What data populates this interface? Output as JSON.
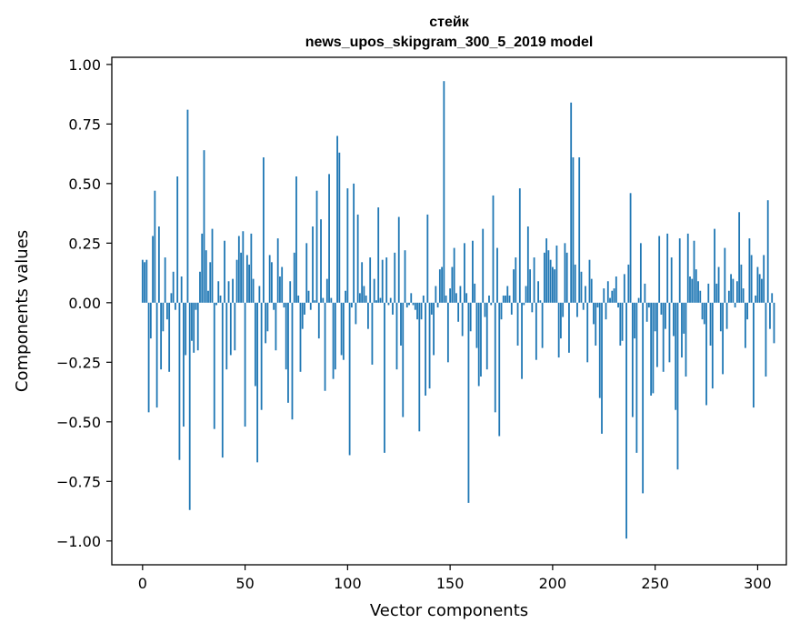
{
  "chart_data": {
    "type": "bar",
    "title": "стейк",
    "subtitle": "news_upos_skipgram_300_5_2019 model",
    "xlabel": "Vector components",
    "ylabel": "Components values",
    "xlim": [
      -15,
      314
    ],
    "ylim": [
      -1.1,
      1.03
    ],
    "xticks": [
      0,
      50,
      100,
      150,
      200,
      250,
      300
    ],
    "yticks": [
      1.0,
      0.75,
      0.5,
      0.25,
      0.0,
      -0.25,
      -0.5,
      -0.75,
      -1.0
    ],
    "xtick_labels": [
      "0",
      "50",
      "100",
      "150",
      "200",
      "250",
      "300"
    ],
    "ytick_labels": [
      "1.00",
      "0.75",
      "0.50",
      "0.25",
      "0.00",
      "−0.25",
      "−0.50",
      "−0.75",
      "−1.00"
    ],
    "bar_color": "#1f77b4",
    "values": [
      0.18,
      0.17,
      0.18,
      -0.46,
      -0.15,
      0.28,
      0.47,
      -0.44,
      0.32,
      -0.28,
      -0.12,
      0.19,
      -0.07,
      -0.29,
      0.04,
      0.13,
      -0.03,
      0.53,
      -0.66,
      0.11,
      -0.52,
      -0.22,
      0.81,
      -0.87,
      -0.16,
      -0.21,
      -0.03,
      -0.2,
      0.13,
      0.29,
      0.64,
      0.22,
      0.05,
      0.17,
      0.31,
      -0.53,
      -0.01,
      0.09,
      0.03,
      -0.65,
      0.26,
      -0.28,
      0.09,
      -0.22,
      0.1,
      -0.2,
      0.18,
      0.28,
      0.21,
      0.3,
      -0.52,
      0.2,
      0.16,
      0.29,
      0.1,
      -0.35,
      -0.67,
      0.07,
      -0.45,
      0.61,
      -0.17,
      -0.12,
      0.2,
      0.17,
      -0.03,
      -0.2,
      0.27,
      0.11,
      0.15,
      -0.02,
      -0.28,
      -0.42,
      0.09,
      -0.49,
      0.21,
      0.53,
      0.03,
      -0.29,
      -0.11,
      -0.05,
      0.25,
      0.05,
      -0.03,
      0.32,
      0.01,
      0.47,
      -0.15,
      0.35,
      0.02,
      -0.37,
      0.1,
      0.54,
      0.02,
      -0.32,
      -0.28,
      0.7,
      0.63,
      -0.22,
      -0.24,
      0.05,
      0.48,
      -0.64,
      -0.02,
      0.5,
      -0.09,
      0.37,
      0.04,
      0.17,
      0.07,
      0.03,
      -0.11,
      0.19,
      -0.26,
      0.1,
      0.01,
      0.4,
      0.02,
      0.18,
      -0.63,
      0.19,
      -0.01,
      0.02,
      -0.05,
      0.21,
      -0.28,
      0.36,
      -0.18,
      -0.48,
      0.22,
      -0.02,
      -0.01,
      0.04,
      -0.01,
      -0.03,
      -0.07,
      -0.54,
      -0.07,
      0.03,
      -0.39,
      0.37,
      -0.36,
      -0.05,
      -0.22,
      0.07,
      -0.02,
      0.14,
      0.15,
      0.93,
      0.03,
      -0.25,
      0.06,
      0.15,
      0.23,
      0.04,
      -0.08,
      0.07,
      -0.14,
      0.25,
      0.04,
      -0.84,
      -0.12,
      0.26,
      0.08,
      -0.19,
      -0.35,
      -0.31,
      0.31,
      -0.06,
      -0.28,
      0.03,
      -0.01,
      0.45,
      -0.46,
      0.23,
      -0.56,
      -0.07,
      0.03,
      0.03,
      0.07,
      0.03,
      -0.05,
      0.14,
      0.19,
      -0.18,
      0.48,
      -0.32,
      -0.01,
      0.07,
      0.32,
      0.14,
      -0.04,
      0.19,
      -0.24,
      0.09,
      0.01,
      -0.19,
      0.21,
      0.27,
      0.22,
      0.18,
      0.15,
      0.14,
      0.24,
      -0.23,
      -0.15,
      -0.06,
      0.25,
      0.21,
      -0.21,
      0.84,
      0.61,
      0.16,
      -0.06,
      0.61,
      0.13,
      -0.03,
      0.07,
      -0.25,
      0.18,
      0.1,
      -0.09,
      -0.18,
      -0.02,
      -0.4,
      -0.55,
      0.06,
      -0.07,
      0.09,
      0.02,
      0.05,
      0.06,
      0.11,
      -0.02,
      -0.18,
      -0.16,
      0.12,
      -0.99,
      0.16,
      0.46,
      -0.48,
      -0.15,
      -0.63,
      0.02,
      0.25,
      -0.8,
      0.08,
      -0.08,
      -0.02,
      -0.39,
      -0.38,
      -0.12,
      -0.27,
      0.28,
      -0.05,
      -0.29,
      -0.11,
      0.29,
      -0.25,
      0.19,
      -0.14,
      -0.45,
      -0.7,
      0.27,
      -0.23,
      -0.13,
      -0.31,
      0.29,
      0.11,
      0.1,
      0.26,
      0.14,
      0.09,
      0.05,
      -0.07,
      -0.09,
      -0.43,
      0.08,
      -0.18,
      -0.36,
      0.31,
      0.08,
      0.15,
      -0.12,
      -0.3,
      0.23,
      -0.11,
      0.05,
      0.12,
      0.1,
      -0.02,
      0.09,
      0.38,
      0.16,
      0.06,
      -0.19,
      -0.07,
      0.27,
      0.2,
      -0.44,
      0.03,
      0.15,
      0.12,
      0.1,
      0.2,
      -0.31,
      0.43,
      -0.11,
      0.04,
      -0.17
    ]
  }
}
